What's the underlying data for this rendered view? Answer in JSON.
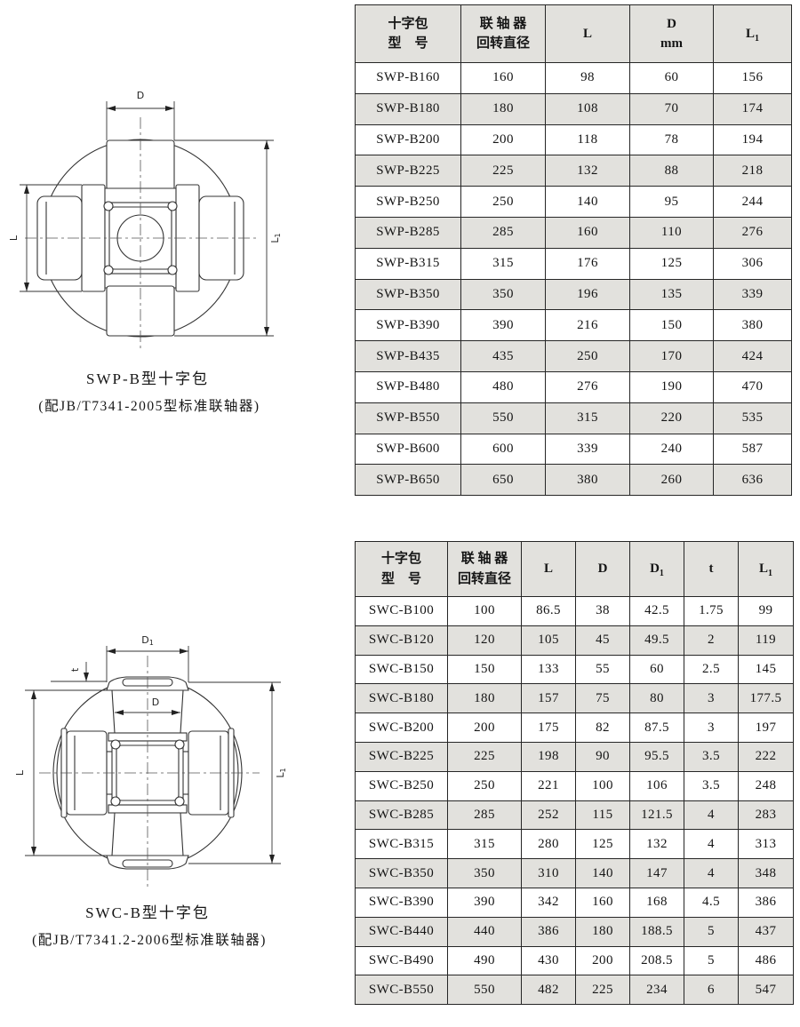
{
  "colors": {
    "row_alt": "#e2e1dd",
    "header_bg": "#e2e1dd",
    "border": "#262626"
  },
  "figures": [
    {
      "id": "swp-b",
      "caption": "SWP-B型十字包",
      "subcaption": "(配JB/T7341-2005型标准联轴器)",
      "labels": {
        "d": "D",
        "l": "L",
        "l1_main": "L",
        "l1_sub": "1"
      }
    },
    {
      "id": "swc-b",
      "caption": "SWC-B型十字包",
      "subcaption": "(配JB/T7341.2-2006型标准联轴器)",
      "labels": {
        "d1_main": "D",
        "d1_sub": "1",
        "t": "t",
        "d": "D",
        "l": "L",
        "l1_main": "L",
        "l1_sub": "1"
      }
    }
  ],
  "tables": [
    {
      "id": "swp-b-table",
      "headers": [
        {
          "lines": [
            "十字包",
            "型　号"
          ]
        },
        {
          "lines": [
            "联 轴 器",
            "回转直径"
          ]
        },
        {
          "lines": [
            "L"
          ]
        },
        {
          "lines": [
            "D",
            "mm"
          ]
        },
        {
          "lines": [
            "L"
          ],
          "sub": "1"
        }
      ],
      "rows": [
        [
          "SWP-B160",
          "160",
          "98",
          "60",
          "156"
        ],
        [
          "SWP-B180",
          "180",
          "108",
          "70",
          "174"
        ],
        [
          "SWP-B200",
          "200",
          "118",
          "78",
          "194"
        ],
        [
          "SWP-B225",
          "225",
          "132",
          "88",
          "218"
        ],
        [
          "SWP-B250",
          "250",
          "140",
          "95",
          "244"
        ],
        [
          "SWP-B285",
          "285",
          "160",
          "110",
          "276"
        ],
        [
          "SWP-B315",
          "315",
          "176",
          "125",
          "306"
        ],
        [
          "SWP-B350",
          "350",
          "196",
          "135",
          "339"
        ],
        [
          "SWP-B390",
          "390",
          "216",
          "150",
          "380"
        ],
        [
          "SWP-B435",
          "435",
          "250",
          "170",
          "424"
        ],
        [
          "SWP-B480",
          "480",
          "276",
          "190",
          "470"
        ],
        [
          "SWP-B550",
          "550",
          "315",
          "220",
          "535"
        ],
        [
          "SWP-B600",
          "600",
          "339",
          "240",
          "587"
        ],
        [
          "SWP-B650",
          "650",
          "380",
          "260",
          "636"
        ]
      ]
    },
    {
      "id": "swc-b-table",
      "headers": [
        {
          "lines": [
            "十字包",
            "型　号"
          ]
        },
        {
          "lines": [
            "联 轴 器",
            "回转直径"
          ]
        },
        {
          "lines": [
            "L"
          ]
        },
        {
          "lines": [
            "D"
          ]
        },
        {
          "lines": [
            "D"
          ],
          "sub": "1"
        },
        {
          "lines": [
            "t"
          ]
        },
        {
          "lines": [
            "L"
          ],
          "sub": "1"
        }
      ],
      "rows": [
        [
          "SWC-B100",
          "100",
          "86.5",
          "38",
          "42.5",
          "1.75",
          "99"
        ],
        [
          "SWC-B120",
          "120",
          "105",
          "45",
          "49.5",
          "2",
          "119"
        ],
        [
          "SWC-B150",
          "150",
          "133",
          "55",
          "60",
          "2.5",
          "145"
        ],
        [
          "SWC-B180",
          "180",
          "157",
          "75",
          "80",
          "3",
          "177.5"
        ],
        [
          "SWC-B200",
          "200",
          "175",
          "82",
          "87.5",
          "3",
          "197"
        ],
        [
          "SWC-B225",
          "225",
          "198",
          "90",
          "95.5",
          "3.5",
          "222"
        ],
        [
          "SWC-B250",
          "250",
          "221",
          "100",
          "106",
          "3.5",
          "248"
        ],
        [
          "SWC-B285",
          "285",
          "252",
          "115",
          "121.5",
          "4",
          "283"
        ],
        [
          "SWC-B315",
          "315",
          "280",
          "125",
          "132",
          "4",
          "313"
        ],
        [
          "SWC-B350",
          "350",
          "310",
          "140",
          "147",
          "4",
          "348"
        ],
        [
          "SWC-B390",
          "390",
          "342",
          "160",
          "168",
          "4.5",
          "386"
        ],
        [
          "SWC-B440",
          "440",
          "386",
          "180",
          "188.5",
          "5",
          "437"
        ],
        [
          "SWC-B490",
          "490",
          "430",
          "200",
          "208.5",
          "5",
          "486"
        ],
        [
          "SWC-B550",
          "550",
          "482",
          "225",
          "234",
          "6",
          "547"
        ]
      ]
    }
  ]
}
